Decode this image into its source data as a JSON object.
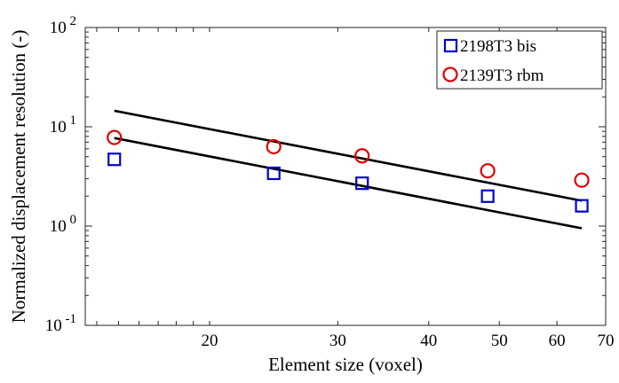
{
  "chart_data": {
    "type": "scatter",
    "xlabel": "Element size (voxel)",
    "ylabel": "Normalized displacement resolution (-)",
    "xscale": "log",
    "yscale": "log",
    "xlim": [
      13.5,
      70
    ],
    "ylim": [
      0.1,
      100
    ],
    "x_ticks": [
      {
        "value": 20,
        "label": "20"
      },
      {
        "value": 30,
        "label": "30"
      },
      {
        "value": 40,
        "label": "40"
      },
      {
        "value": 50,
        "label": "50"
      },
      {
        "value": 60,
        "label": "60"
      },
      {
        "value": 70,
        "label": "70"
      }
    ],
    "y_ticks": [
      {
        "value": 0.1,
        "base": "10",
        "exp": "-1"
      },
      {
        "value": 1,
        "base": "10",
        "exp": "0"
      },
      {
        "value": 10,
        "base": "10",
        "exp": "1"
      },
      {
        "value": 100,
        "base": "10",
        "exp": "2"
      }
    ],
    "grid": false,
    "legend_position": "top-right",
    "series": [
      {
        "name": "2198T3 bis",
        "marker": "square",
        "color": "#0000cc",
        "x": [
          14.8,
          24.5,
          32.4,
          48.2,
          64.9
        ],
        "y": [
          4.7,
          3.4,
          2.7,
          2.0,
          1.6
        ]
      },
      {
        "name": "2139T3 rbm",
        "marker": "circle",
        "color": "#dd0000",
        "x": [
          14.8,
          24.5,
          32.4,
          48.2,
          64.9
        ],
        "y": [
          7.8,
          6.3,
          5.1,
          3.6,
          2.9
        ]
      }
    ],
    "fit_lines": [
      {
        "color": "#000000",
        "x": [
          14.8,
          64.9
        ],
        "y": [
          14.5,
          1.8
        ]
      },
      {
        "color": "#000000",
        "x": [
          14.8,
          64.9
        ],
        "y": [
          7.7,
          0.95
        ]
      }
    ]
  }
}
